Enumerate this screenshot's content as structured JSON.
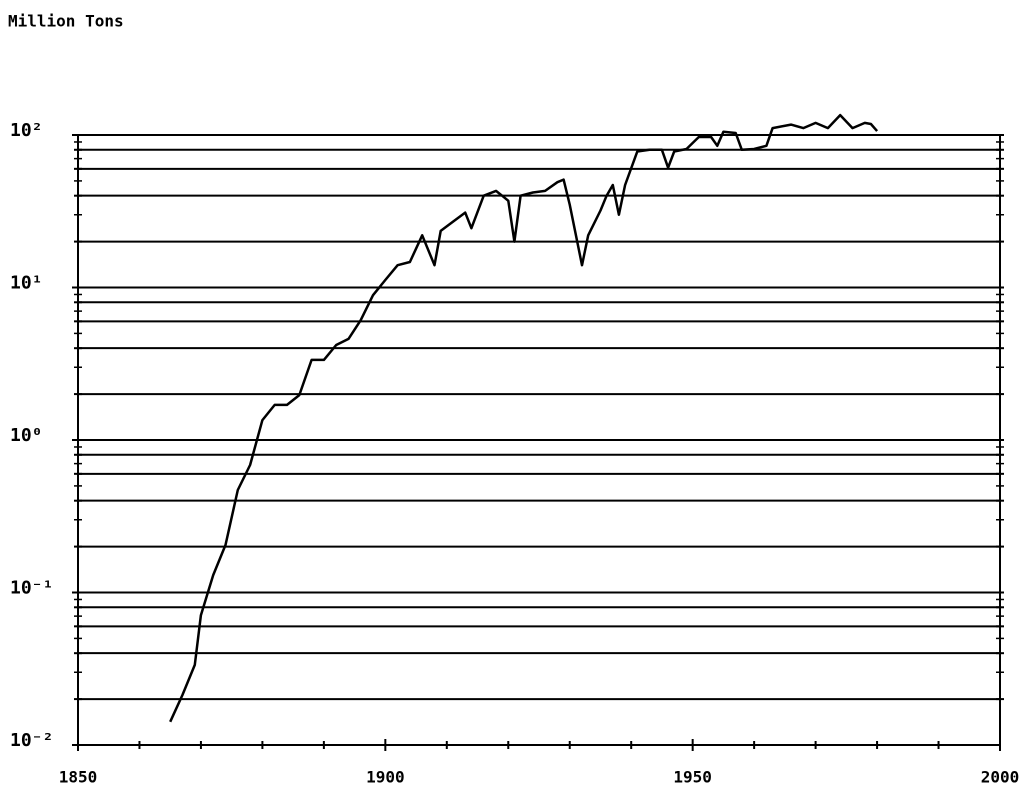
{
  "chart_data": {
    "type": "line",
    "ylabel": "Million Tons",
    "log_y": true,
    "color": "#000000",
    "x": [
      1865,
      1867,
      1869,
      1870,
      1872,
      1874,
      1876,
      1878,
      1880,
      1882,
      1884,
      1886,
      1888,
      1890,
      1892,
      1894,
      1896,
      1898,
      1900,
      1902,
      1904,
      1906,
      1908,
      1909,
      1911,
      1913,
      1914,
      1916,
      1918,
      1919,
      1920,
      1921,
      1922,
      1924,
      1926,
      1928,
      1929,
      1930,
      1932,
      1933,
      1935,
      1936,
      1937,
      1938,
      1939,
      1941,
      1943,
      1945,
      1946,
      1947,
      1949,
      1951,
      1953,
      1954,
      1955,
      1957,
      1958,
      1960,
      1962,
      1963,
      1966,
      1968,
      1970,
      1972,
      1974,
      1976,
      1978,
      1979,
      1980
    ],
    "values": [
      0.0142,
      0.0213,
      0.0335,
      0.071,
      0.13,
      0.205,
      0.47,
      0.686,
      1.35,
      1.7,
      1.7,
      1.97,
      3.35,
      3.35,
      4.2,
      4.6,
      6.1,
      8.9,
      11.2,
      14,
      14.7,
      22,
      14,
      23.5,
      27,
      31,
      24.5,
      40,
      43,
      40,
      37,
      20,
      40,
      42,
      43,
      49,
      51,
      35,
      14,
      22,
      32,
      40,
      47,
      30,
      47,
      78,
      80,
      80,
      61,
      78,
      81,
      97,
      97,
      85,
      105,
      103,
      80,
      81,
      85,
      111,
      117,
      111,
      120,
      111,
      135,
      111,
      120,
      118,
      106
    ],
    "xlim": [
      1850,
      2000
    ],
    "xticks": [
      1850,
      1900,
      1950,
      2000
    ],
    "xminor_ticks": [
      1860,
      1870,
      1880,
      1890,
      1910,
      1920,
      1930,
      1940,
      1960,
      1970,
      1980,
      1990
    ],
    "ylim": [
      0.01,
      100
    ],
    "yticks": [
      {
        "value": 100,
        "label": "10²"
      },
      {
        "value": 10,
        "label": "10¹"
      },
      {
        "value": 1,
        "label": "10⁰"
      },
      {
        "value": 0.1,
        "label": "10⁻¹"
      },
      {
        "value": 0.01,
        "label": "10⁻²"
      }
    ],
    "grid": true,
    "grid_lines": [
      0.02,
      0.04,
      0.06,
      0.08,
      0.1,
      0.2,
      0.4,
      0.6,
      0.8,
      1,
      2,
      4,
      6,
      8,
      10,
      20,
      40,
      60,
      80,
      100
    ],
    "yminor_ticks": [
      0.03,
      0.05,
      0.07,
      0.09,
      0.3,
      0.5,
      0.7,
      0.9,
      3,
      5,
      7,
      9,
      30,
      50,
      70,
      90
    ]
  }
}
